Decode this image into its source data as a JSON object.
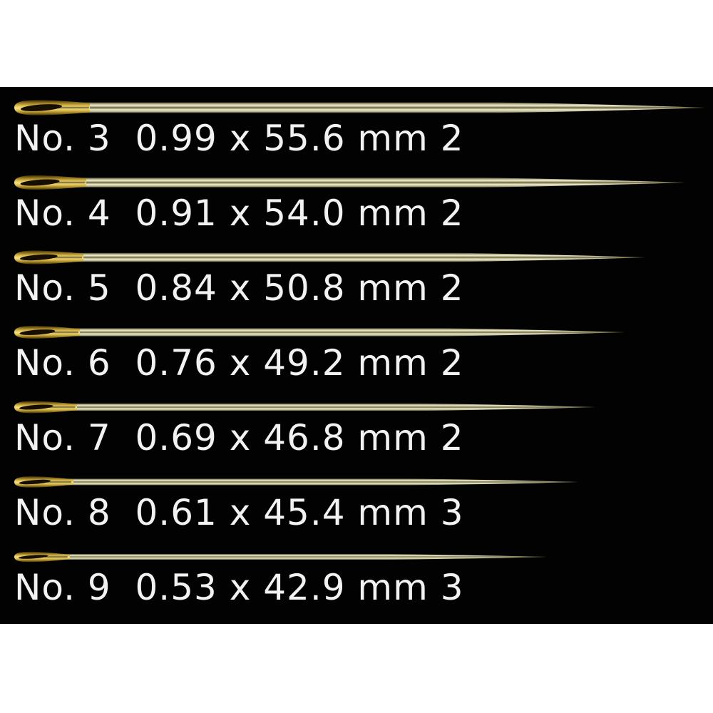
{
  "page": {
    "background": "#ffffff",
    "panel_background": "#020202"
  },
  "text": {
    "color": "#f2f2f2"
  },
  "needles": [
    {
      "no": "No. 3",
      "diameter_mm": "0.99",
      "length_mm": "55.6",
      "quantity": "2",
      "caption": "No. 3  0.99 x 55.6 mm 2"
    },
    {
      "no": "No. 4",
      "diameter_mm": "0.91",
      "length_mm": "54.0",
      "quantity": "2",
      "caption": "No. 4  0.91 x 54.0 mm 2"
    },
    {
      "no": "No. 5",
      "diameter_mm": "0.84",
      "length_mm": "50.8",
      "quantity": "2",
      "caption": "No. 5  0.84 x 50.8 mm 2"
    },
    {
      "no": "No. 6",
      "diameter_mm": "0.76",
      "length_mm": "49.2",
      "quantity": "2",
      "caption": "No. 6  0.76 x 49.2 mm 2"
    },
    {
      "no": "No. 7",
      "diameter_mm": "0.69",
      "length_mm": "46.8",
      "quantity": "2",
      "caption": "No. 7  0.69 x 46.8 mm 2"
    },
    {
      "no": "No. 8",
      "diameter_mm": "0.61",
      "length_mm": "45.4",
      "quantity": "3",
      "caption": "No. 8  0.61 x 45.4 mm 3"
    },
    {
      "no": "No. 9",
      "diameter_mm": "0.53",
      "length_mm": "42.9",
      "quantity": "3",
      "caption": "No. 9  0.53 x 42.9 mm 3"
    }
  ],
  "needle_colors": {
    "gold_edge_dark": "#3a2d06",
    "gold_dark": "#8a6d1c",
    "gold_mid": "#d9b94a",
    "gold_light": "#f4e38a",
    "eye_hole": "#170e02",
    "shaft_edge_dark": "#35311f",
    "shaft_pale": "#efedd2",
    "shaft_center_dark": "#6a6538",
    "shaft_mid": "#b3af86"
  }
}
